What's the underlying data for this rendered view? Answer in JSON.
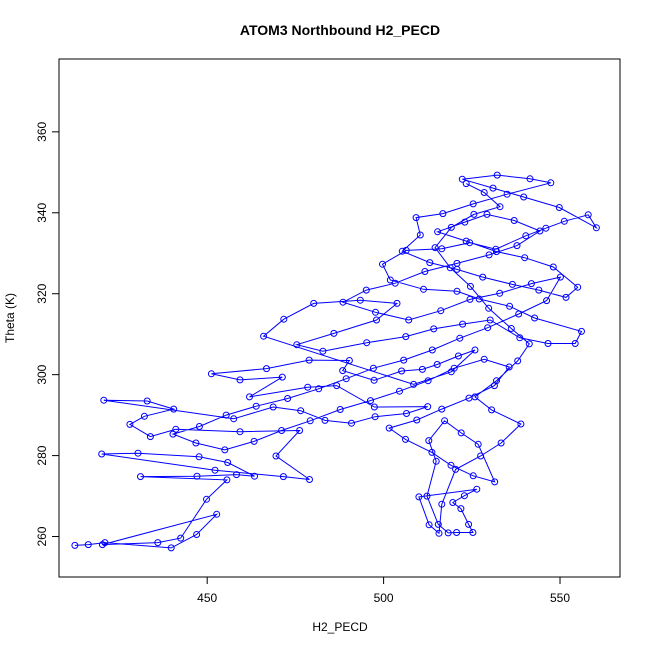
{
  "chart_data": {
    "type": "line",
    "title": "ATOM3 Northbound H2_PECD",
    "xlabel": "H2_PECD",
    "ylabel": "Theta (K)",
    "xlim": [
      408,
      567
    ],
    "ylim": [
      250,
      378
    ],
    "x_ticks": [
      450,
      500,
      550
    ],
    "y_ticks": [
      260,
      280,
      300,
      320,
      340,
      360
    ],
    "grid": false,
    "legend": "none",
    "series": [
      {
        "color": "#0000ff",
        "marker": "open-circle",
        "points": [
          [
            412.5,
            257.8
          ],
          [
            416.3,
            258.0
          ],
          [
            421.0,
            258.5
          ],
          [
            439.8,
            257.2
          ],
          [
            447.0,
            260.5
          ],
          [
            452.7,
            265.5
          ],
          [
            420.3,
            258.0
          ],
          [
            436.0,
            258.5
          ],
          [
            442.5,
            259.6
          ],
          [
            449.8,
            269.2
          ],
          [
            455.6,
            274.0
          ],
          [
            431.1,
            274.8
          ],
          [
            447.1,
            274.9
          ],
          [
            458.3,
            275.3
          ],
          [
            463.4,
            274.9
          ],
          [
            455.8,
            278.3
          ],
          [
            447.7,
            279.7
          ],
          [
            430.4,
            280.6
          ],
          [
            420.1,
            280.4
          ],
          [
            452.2,
            276.4
          ],
          [
            471.6,
            274.8
          ],
          [
            479.0,
            274.1
          ],
          [
            469.5,
            279.9
          ],
          [
            476.2,
            286.2
          ],
          [
            459.3,
            285.9
          ],
          [
            441.1,
            286.5
          ],
          [
            433.9,
            284.7
          ],
          [
            428.1,
            287.7
          ],
          [
            432.2,
            289.7
          ],
          [
            440.5,
            291.5
          ],
          [
            433.0,
            293.5
          ],
          [
            420.7,
            293.7
          ],
          [
            457.5,
            289.1
          ],
          [
            468.7,
            292.0
          ],
          [
            476.5,
            291.1
          ],
          [
            483.4,
            288.7
          ],
          [
            490.9,
            288.0
          ],
          [
            497.6,
            289.6
          ],
          [
            506.5,
            290.4
          ],
          [
            512.5,
            292.1
          ],
          [
            497.4,
            292.0
          ],
          [
            486.7,
            297.3
          ],
          [
            478.5,
            296.9
          ],
          [
            462.0,
            294.5
          ],
          [
            471.3,
            299.4
          ],
          [
            459.3,
            298.7
          ],
          [
            451.2,
            300.2
          ],
          [
            466.8,
            301.5
          ],
          [
            478.9,
            303.6
          ],
          [
            490.3,
            303.5
          ],
          [
            488.4,
            301.0
          ],
          [
            497.3,
            298.6
          ],
          [
            505.1,
            300.9
          ],
          [
            511.0,
            301.3
          ],
          [
            515.2,
            302.5
          ],
          [
            521.2,
            304.6
          ],
          [
            525.9,
            306.1
          ],
          [
            519.2,
            300.7
          ],
          [
            508.5,
            297.6
          ],
          [
            466.0,
            309.5
          ],
          [
            471.7,
            313.7
          ],
          [
            480.2,
            317.6
          ],
          [
            493.4,
            318.4
          ],
          [
            503.8,
            317.6
          ],
          [
            498.0,
            313.5
          ],
          [
            485.9,
            310.2
          ],
          [
            475.4,
            307.4
          ],
          [
            482.8,
            305.8
          ],
          [
            495.2,
            307.9
          ],
          [
            506.3,
            309.4
          ],
          [
            514.2,
            311.3
          ],
          [
            522.4,
            312.5
          ],
          [
            530.2,
            313.5
          ],
          [
            538.6,
            309.1
          ],
          [
            546.6,
            307.7
          ],
          [
            554.3,
            307.7
          ],
          [
            556.1,
            310.7
          ],
          [
            542.8,
            314.0
          ],
          [
            535.7,
            316.9
          ],
          [
            527.1,
            318.7
          ],
          [
            520.8,
            320.6
          ],
          [
            511.3,
            321.1
          ],
          [
            501.9,
            323.4
          ],
          [
            499.7,
            327.3
          ],
          [
            506.4,
            330.7
          ],
          [
            516.5,
            331.1
          ],
          [
            524.4,
            332.6
          ],
          [
            531.8,
            331.0
          ],
          [
            540.3,
            334.3
          ],
          [
            546.0,
            336.2
          ],
          [
            551.2,
            337.9
          ],
          [
            558.0,
            339.5
          ],
          [
            560.3,
            336.3
          ],
          [
            549.8,
            341.3
          ],
          [
            539.7,
            343.9
          ],
          [
            531.0,
            346.1
          ],
          [
            522.3,
            348.3
          ],
          [
            532.2,
            349.3
          ],
          [
            541.5,
            348.4
          ],
          [
            547.4,
            347.4
          ],
          [
            535.0,
            344.6
          ],
          [
            525.4,
            342.2
          ],
          [
            516.8,
            339.8
          ],
          [
            509.2,
            338.8
          ],
          [
            510.4,
            334.5
          ],
          [
            505.3,
            330.5
          ],
          [
            513.1,
            327.7
          ],
          [
            520.8,
            326.0
          ],
          [
            528.1,
            324.1
          ],
          [
            536.5,
            322.3
          ],
          [
            544.0,
            320.9
          ],
          [
            551.7,
            319.1
          ],
          [
            555.0,
            321.6
          ],
          [
            548.1,
            326.6
          ],
          [
            540.0,
            328.9
          ],
          [
            532.0,
            330.4
          ],
          [
            523.4,
            333.0
          ],
          [
            515.3,
            335.3
          ],
          [
            523.0,
            337.7
          ],
          [
            529.3,
            339.6
          ],
          [
            537.0,
            338.1
          ],
          [
            544.3,
            335.5
          ],
          [
            537.8,
            331.9
          ],
          [
            529.9,
            329.6
          ],
          [
            520.8,
            327.5
          ],
          [
            511.7,
            325.5
          ],
          [
            503.3,
            322.6
          ],
          [
            495.1,
            320.9
          ],
          [
            488.5,
            317.9
          ],
          [
            497.7,
            315.4
          ],
          [
            507.1,
            313.5
          ],
          [
            516.2,
            315.8
          ],
          [
            524.5,
            318.6
          ],
          [
            532.9,
            320.1
          ],
          [
            541.9,
            322.5
          ],
          [
            550.1,
            324.1
          ],
          [
            546.2,
            318.3
          ],
          [
            538.3,
            315.0
          ],
          [
            529.5,
            311.6
          ],
          [
            521.6,
            309.0
          ],
          [
            513.8,
            306.1
          ],
          [
            505.7,
            303.6
          ],
          [
            497.1,
            301.6
          ],
          [
            489.4,
            299.0
          ],
          [
            481.6,
            296.5
          ],
          [
            472.8,
            294.1
          ],
          [
            463.9,
            292.2
          ],
          [
            455.4,
            290.0
          ],
          [
            447.8,
            287.2
          ],
          [
            440.3,
            285.3
          ],
          [
            446.8,
            283.1
          ],
          [
            455.0,
            281.4
          ],
          [
            463.3,
            283.5
          ],
          [
            471.1,
            286.2
          ],
          [
            479.2,
            288.6
          ],
          [
            487.7,
            291.4
          ],
          [
            496.3,
            293.6
          ],
          [
            504.5,
            295.9
          ],
          [
            512.6,
            298.5
          ],
          [
            520.0,
            301.6
          ],
          [
            528.5,
            303.8
          ],
          [
            535.6,
            301.9
          ],
          [
            531.4,
            297.3
          ],
          [
            524.2,
            294.2
          ],
          [
            516.5,
            291.5
          ],
          [
            509.4,
            288.8
          ],
          [
            501.6,
            286.8
          ],
          [
            506.2,
            284.0
          ],
          [
            513.7,
            280.8
          ],
          [
            519.1,
            277.6
          ],
          [
            525.4,
            275.0
          ],
          [
            531.5,
            273.5
          ],
          [
            526.8,
            282.8
          ],
          [
            522.0,
            285.6
          ],
          [
            517.3,
            288.6
          ],
          [
            512.8,
            283.7
          ],
          [
            514.9,
            278.6
          ],
          [
            512.3,
            270.0
          ],
          [
            515.5,
            263.0
          ],
          [
            518.3,
            260.9
          ],
          [
            520.7,
            261.0
          ],
          [
            525.3,
            261.0
          ],
          [
            524.1,
            263.0
          ],
          [
            521.9,
            266.9
          ],
          [
            519.6,
            268.4
          ],
          [
            522.9,
            270.1
          ],
          [
            526.4,
            271.7
          ],
          [
            510.0,
            269.8
          ],
          [
            512.9,
            262.9
          ],
          [
            515.7,
            260.8
          ],
          [
            516.5,
            268.0
          ],
          [
            520.4,
            276.6
          ],
          [
            527.5,
            279.9
          ],
          [
            533.3,
            283.1
          ],
          [
            538.9,
            287.8
          ],
          [
            530.6,
            291.3
          ],
          [
            525.9,
            294.5
          ],
          [
            532.0,
            298.5
          ],
          [
            538.0,
            303.4
          ],
          [
            541.3,
            307.6
          ],
          [
            536.2,
            311.4
          ],
          [
            529.8,
            316.4
          ],
          [
            524.6,
            321.8
          ],
          [
            518.9,
            326.4
          ],
          [
            514.6,
            331.4
          ],
          [
            519.2,
            336.4
          ],
          [
            525.6,
            339.6
          ],
          [
            533.0,
            341.5
          ],
          [
            528.5,
            345.0
          ],
          [
            523.4,
            347.2
          ]
        ]
      }
    ]
  }
}
